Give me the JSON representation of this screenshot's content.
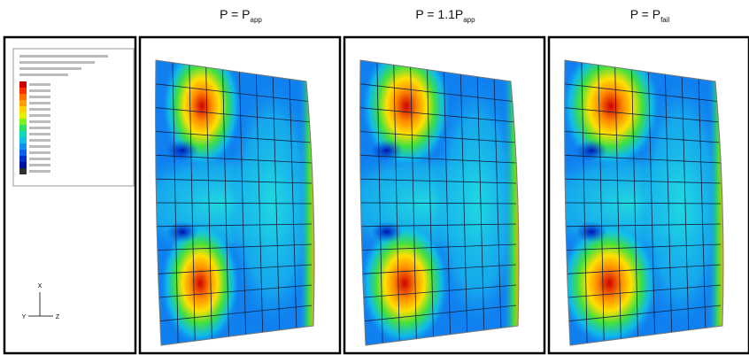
{
  "panels": [
    {
      "title": "P = P",
      "subscript": "app"
    },
    {
      "title": "P = 1.1P",
      "subscript": "app"
    },
    {
      "title": "P = P",
      "subscript": "fail"
    }
  ],
  "triad": {
    "up": "X",
    "left": "Y",
    "right": "Z"
  }
}
